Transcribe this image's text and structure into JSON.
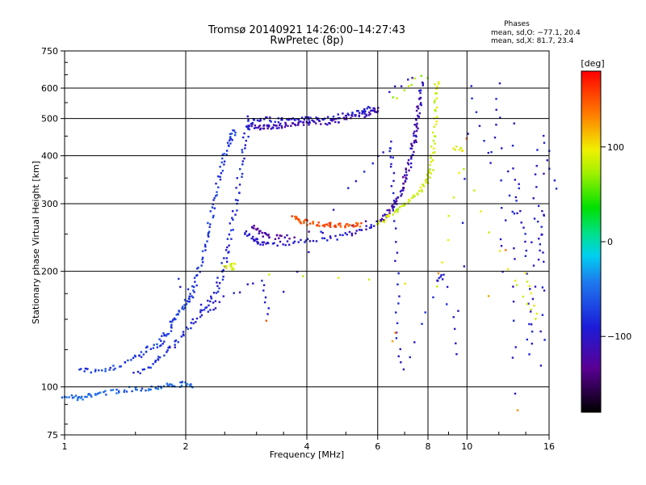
{
  "colors": {
    "grid": "#000000",
    "frame": "#000000",
    "background": "#ffffff"
  },
  "chart_data": {
    "type": "scatter",
    "title": "Tromsø 20140921 14:26:00–14:27:43",
    "subtitle": "RwPretec (8p)",
    "xlabel": "Frequency [MHz]",
    "ylabel": "Stationary phase Virtual Height [km]",
    "x_scale": "log",
    "y_scale": "log",
    "xlim": [
      1,
      16
    ],
    "ylim": [
      75,
      750
    ],
    "x_ticks": [
      "1",
      "2",
      "4",
      "6",
      "8",
      "10",
      "16"
    ],
    "x_tick_values": [
      1,
      2,
      4,
      6,
      8,
      10,
      16
    ],
    "y_ticks": [
      "75",
      "100",
      "200",
      "300",
      "400",
      "500",
      "600",
      "750"
    ],
    "y_tick_values": [
      75,
      100,
      200,
      300,
      400,
      500,
      600,
      750
    ],
    "grid": true,
    "stats": {
      "heading": "Phases",
      "line_o": "mean, sd,O: −77.1, 20.4",
      "line_x": "mean, sd,X:  81.7, 23.4"
    },
    "colorbar": {
      "label": "[deg]",
      "min": -180,
      "max": 180,
      "ticks": [
        "100",
        "0",
        "−100"
      ],
      "tick_values": [
        100,
        0,
        -100
      ]
    },
    "series": [
      {
        "values": [
          [
            1.0,
            95
          ],
          [
            1.05,
            94
          ],
          [
            1.1,
            93
          ],
          [
            1.15,
            95
          ],
          [
            1.2,
            96
          ],
          [
            1.3,
            97
          ],
          [
            1.4,
            98
          ],
          [
            1.5,
            99
          ],
          [
            1.6,
            99
          ],
          [
            1.7,
            100
          ],
          [
            1.8,
            101
          ],
          [
            1.9,
            101
          ],
          [
            2.0,
            102
          ],
          [
            2.1,
            101
          ]
        ],
        "phase": -55
      },
      {
        "values": [
          [
            1.1,
            110
          ],
          [
            1.15,
            110
          ],
          [
            1.25,
            111
          ],
          [
            1.35,
            113
          ],
          [
            1.45,
            117
          ],
          [
            1.55,
            121
          ],
          [
            1.6,
            126
          ],
          [
            1.7,
            128
          ],
          [
            1.75,
            133
          ],
          [
            1.8,
            138
          ],
          [
            1.85,
            146
          ],
          [
            1.9,
            153
          ],
          [
            1.95,
            160
          ],
          [
            2.0,
            165
          ],
          [
            2.05,
            172
          ],
          [
            2.1,
            182
          ],
          [
            2.15,
            198
          ],
          [
            2.2,
            220
          ],
          [
            2.25,
            245
          ],
          [
            2.3,
            270
          ],
          [
            2.35,
            300
          ],
          [
            2.4,
            330
          ],
          [
            2.45,
            370
          ],
          [
            2.5,
            400
          ],
          [
            2.55,
            430
          ],
          [
            2.6,
            450
          ],
          [
            2.65,
            460
          ]
        ],
        "phase": -75
      },
      {
        "values": [
          [
            1.5,
            108
          ],
          [
            1.6,
            112
          ],
          [
            1.7,
            118
          ],
          [
            1.8,
            124
          ],
          [
            1.9,
            130
          ],
          [
            2.0,
            138
          ],
          [
            2.1,
            148
          ],
          [
            2.2,
            158
          ],
          [
            2.3,
            168
          ],
          [
            2.4,
            180
          ],
          [
            2.45,
            195
          ],
          [
            2.5,
            210
          ],
          [
            2.55,
            232
          ],
          [
            2.6,
            260
          ],
          [
            2.65,
            290
          ],
          [
            2.7,
            330
          ],
          [
            2.75,
            380
          ],
          [
            2.8,
            430
          ],
          [
            2.85,
            470
          ],
          [
            2.9,
            490
          ]
        ],
        "phase": -85
      },
      {
        "values": [
          [
            2.85,
            500
          ],
          [
            3.0,
            498
          ],
          [
            3.2,
            497
          ],
          [
            3.4,
            496
          ],
          [
            3.6,
            496
          ],
          [
            3.8,
            497
          ],
          [
            4.0,
            497
          ],
          [
            4.2,
            499
          ],
          [
            4.5,
            502
          ],
          [
            4.8,
            506
          ],
          [
            5.1,
            512
          ],
          [
            5.4,
            520
          ],
          [
            5.6,
            527
          ],
          [
            5.8,
            532
          ]
        ],
        "phase": -95
      },
      {
        "values": [
          [
            2.9,
            478
          ],
          [
            3.0,
            475
          ],
          [
            3.1,
            474
          ],
          [
            3.2,
            475
          ],
          [
            3.3,
            476
          ],
          [
            3.4,
            478
          ],
          [
            3.5,
            480
          ],
          [
            3.7,
            482
          ],
          [
            3.9,
            484
          ],
          [
            4.1,
            486
          ],
          [
            4.4,
            488
          ],
          [
            4.7,
            492
          ],
          [
            5.0,
            498
          ],
          [
            5.3,
            505
          ],
          [
            5.6,
            512
          ],
          [
            5.9,
            522
          ],
          [
            6.0,
            528
          ]
        ],
        "phase": -115
      },
      {
        "values": [
          [
            2.8,
            255
          ],
          [
            2.9,
            245
          ],
          [
            3.0,
            240
          ],
          [
            3.1,
            237
          ],
          [
            3.3,
            236
          ],
          [
            3.6,
            237
          ],
          [
            4.0,
            239
          ],
          [
            4.4,
            242
          ],
          [
            4.8,
            246
          ],
          [
            5.2,
            252
          ],
          [
            5.6,
            259
          ],
          [
            5.9,
            265
          ],
          [
            6.2,
            275
          ],
          [
            6.5,
            290
          ],
          [
            6.8,
            315
          ],
          [
            7.0,
            345
          ],
          [
            7.2,
            385
          ],
          [
            7.4,
            430
          ],
          [
            7.5,
            480
          ],
          [
            7.6,
            530
          ],
          [
            7.65,
            580
          ],
          [
            7.7,
            620
          ]
        ],
        "phase": -100
      },
      {
        "values": [
          [
            2.9,
            262
          ],
          [
            3.0,
            255
          ],
          [
            3.1,
            250
          ],
          [
            3.2,
            247
          ],
          [
            3.4,
            245
          ],
          [
            3.7,
            246
          ],
          [
            6.1,
            272
          ],
          [
            6.4,
            285
          ],
          [
            6.7,
            305
          ],
          [
            6.9,
            330
          ],
          [
            7.1,
            365
          ],
          [
            7.3,
            405
          ],
          [
            7.45,
            450
          ],
          [
            7.55,
            500
          ],
          [
            7.65,
            560
          ]
        ],
        "phase": -125
      },
      {
        "values": [
          [
            3.7,
            278
          ],
          [
            3.8,
            273
          ],
          [
            3.9,
            270
          ],
          [
            4.0,
            268
          ],
          [
            4.2,
            266
          ],
          [
            4.4,
            265
          ],
          [
            4.6,
            264
          ],
          [
            4.8,
            264
          ],
          [
            5.0,
            264
          ],
          [
            5.2,
            264
          ],
          [
            5.4,
            265
          ]
        ],
        "phase": 150
      },
      {
        "values": [
          [
            6.0,
            268
          ],
          [
            6.3,
            275
          ],
          [
            6.6,
            285
          ],
          [
            6.9,
            295
          ],
          [
            7.2,
            305
          ],
          [
            7.5,
            318
          ],
          [
            7.8,
            332
          ],
          [
            8.0,
            345
          ],
          [
            8.1,
            360
          ],
          [
            8.2,
            385
          ],
          [
            8.25,
            420
          ],
          [
            8.3,
            460
          ],
          [
            8.35,
            520
          ],
          [
            8.4,
            580
          ],
          [
            8.4,
            630
          ]
        ],
        "phase": 85
      },
      {
        "values": [
          [
            6.5,
            560
          ],
          [
            6.7,
            570
          ],
          [
            6.9,
            585
          ],
          [
            7.1,
            600
          ],
          [
            7.3,
            620
          ],
          [
            7.5,
            635
          ],
          [
            7.7,
            645
          ],
          [
            7.9,
            640
          ]
        ],
        "phase": 75
      },
      {
        "values": [
          [
            6.5,
            580
          ],
          [
            6.7,
            598
          ],
          [
            6.9,
            612
          ],
          [
            7.1,
            628
          ],
          [
            7.3,
            640
          ]
        ],
        "phase": -105
      },
      {
        "values": [
          [
            1.9,
            190
          ],
          [
            2.3,
            155
          ],
          [
            2.4,
            168
          ],
          [
            3.1,
            190
          ],
          [
            3.2,
            155
          ],
          [
            5.1,
            330
          ],
          [
            6.5,
            430
          ],
          [
            6.5,
            385
          ],
          [
            6.6,
            310
          ],
          [
            6.7,
            210
          ],
          [
            6.7,
            145
          ],
          [
            6.9,
            110
          ],
          [
            8.5,
            190
          ],
          [
            8.8,
            195
          ],
          [
            9.5,
            120
          ],
          [
            10.2,
            600
          ],
          [
            11.4,
            380
          ],
          [
            12.1,
            610
          ],
          [
            12.2,
            200
          ],
          [
            13.0,
            490
          ],
          [
            13.1,
            96
          ],
          [
            13.3,
            350
          ],
          [
            13.5,
            280
          ],
          [
            14.1,
            220
          ],
          [
            14.3,
            120
          ],
          [
            14.6,
            180
          ],
          [
            14.8,
            415
          ],
          [
            15.2,
            215
          ],
          [
            15.5,
            290
          ],
          [
            15.4,
            112
          ],
          [
            15.6,
            450
          ],
          [
            16.5,
            330
          ]
        ],
        "phase": -95
      },
      {
        "values": [
          [
            6.6,
            130
          ],
          [
            6.7,
            140
          ],
          [
            3.2,
            150
          ],
          [
            8.4,
            200
          ],
          [
            9.9,
            440
          ],
          [
            11.2,
            170
          ],
          [
            12.4,
            230
          ],
          [
            13.2,
            86
          ]
        ],
        "phase": 135
      },
      {
        "values": [
          [
            2.5,
            205
          ],
          [
            2.6,
            210
          ],
          [
            2.65,
            200
          ],
          [
            8.5,
            185
          ],
          [
            9.7,
            410
          ],
          [
            9.3,
            420
          ],
          [
            12.7,
            200
          ],
          [
            14.9,
            150
          ],
          [
            14.0,
            200
          ]
        ],
        "phase": 90
      }
    ]
  }
}
